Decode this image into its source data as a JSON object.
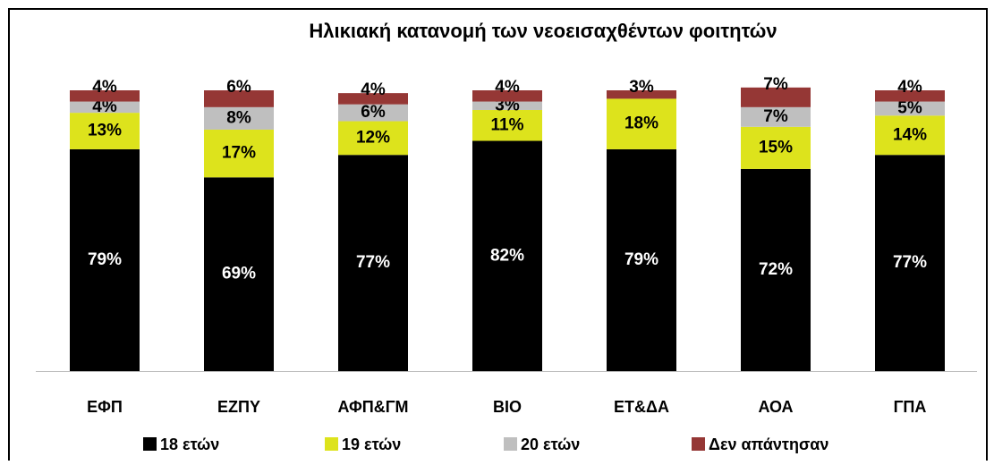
{
  "chart_data": {
    "type": "stacked_bar",
    "title": "Ηλικιακή κατανομή των νεοεισαχθέντων φοιτητών",
    "categories": [
      "ΕΦΠ",
      "ΕΖΠΥ",
      "ΑΦΠ&ΓΜ",
      "ΒΙΟ",
      "ΕΤ&ΔΑ",
      "ΑΟΑ",
      "ΓΠΑ"
    ],
    "series": [
      {
        "name": "18 ετών",
        "color": "#000000",
        "values": [
          79,
          69,
          77,
          82,
          79,
          72,
          77
        ],
        "value_labels": [
          "79%",
          "69%",
          "77%",
          "82%",
          "79%",
          "72%",
          "77%"
        ]
      },
      {
        "name": "19 ετών",
        "color": "#dde31c",
        "values": [
          13,
          17,
          12,
          11,
          18,
          15,
          14
        ],
        "value_labels": [
          "13%",
          "17%",
          "12%",
          "11%",
          "18%",
          "15%",
          "14%"
        ]
      },
      {
        "name": "20 ετών",
        "color": "#bfbfbf",
        "values": [
          4,
          8,
          6,
          3,
          null,
          7,
          5
        ],
        "value_labels": [
          "4%",
          "8%",
          "6%",
          "3%",
          null,
          "7%",
          "5%"
        ]
      },
      {
        "name": "Δεν απάντησαν",
        "color": "#953735",
        "values": [
          4,
          6,
          4,
          4,
          3,
          7,
          4
        ],
        "value_labels": [
          "4%",
          "6%",
          "4%",
          "4%",
          "3%",
          "7%",
          "4%"
        ]
      }
    ],
    "legend": "bottom"
  }
}
